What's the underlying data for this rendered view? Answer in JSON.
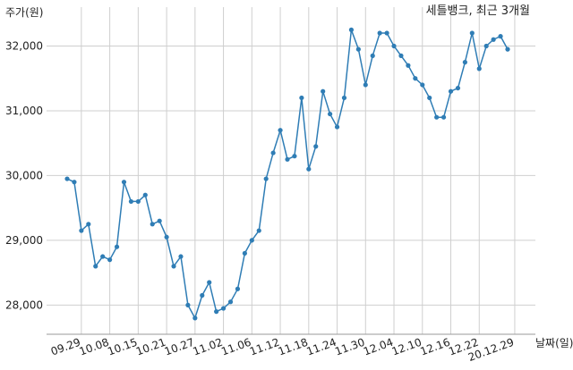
{
  "chart_data": {
    "type": "line",
    "title": "세틀뱅크, 최근 3개월",
    "ylabel": "주가(원)",
    "xlabel": "날짜(일)",
    "ylim": [
      27550,
      32600
    ],
    "grid": true,
    "line_color": "#2f7db5",
    "y_ticks": [
      {
        "value": 28000,
        "label": "28,000"
      },
      {
        "value": 29000,
        "label": "29,000"
      },
      {
        "value": 30000,
        "label": "30,000"
      },
      {
        "value": 31000,
        "label": "31,000"
      },
      {
        "value": 32000,
        "label": "32,000"
      }
    ],
    "x_ticks": [
      {
        "index": 2,
        "label": "09.29"
      },
      {
        "index": 6,
        "label": "10.08"
      },
      {
        "index": 10,
        "label": "10.15"
      },
      {
        "index": 14,
        "label": "10.21"
      },
      {
        "index": 18,
        "label": "10.27"
      },
      {
        "index": 22,
        "label": "11.02"
      },
      {
        "index": 26,
        "label": "11.06"
      },
      {
        "index": 30,
        "label": "11.12"
      },
      {
        "index": 34,
        "label": "11.18"
      },
      {
        "index": 38,
        "label": "11.24"
      },
      {
        "index": 42,
        "label": "11.30"
      },
      {
        "index": 46,
        "label": "12.04"
      },
      {
        "index": 50,
        "label": "12.10"
      },
      {
        "index": 54,
        "label": "12.16"
      },
      {
        "index": 58,
        "label": "12.22"
      },
      {
        "index": 63,
        "label": "20.12.29"
      }
    ],
    "values": [
      29950,
      29900,
      29150,
      29250,
      28600,
      28750,
      28700,
      28900,
      29900,
      29600,
      29600,
      29700,
      29250,
      29300,
      29050,
      28600,
      28750,
      28000,
      27800,
      28150,
      28350,
      27900,
      27950,
      28050,
      28250,
      28800,
      29000,
      29150,
      29950,
      30350,
      30700,
      30250,
      30300,
      31200,
      30100,
      30450,
      31300,
      30950,
      30750,
      31200,
      32250,
      31950,
      31400,
      31850,
      32200,
      32200,
      32000,
      31850,
      31700,
      31500,
      31400,
      31200,
      30900,
      30900,
      31300,
      31350,
      31750,
      32200,
      31650,
      32000,
      32100,
      32150,
      31950
    ]
  }
}
